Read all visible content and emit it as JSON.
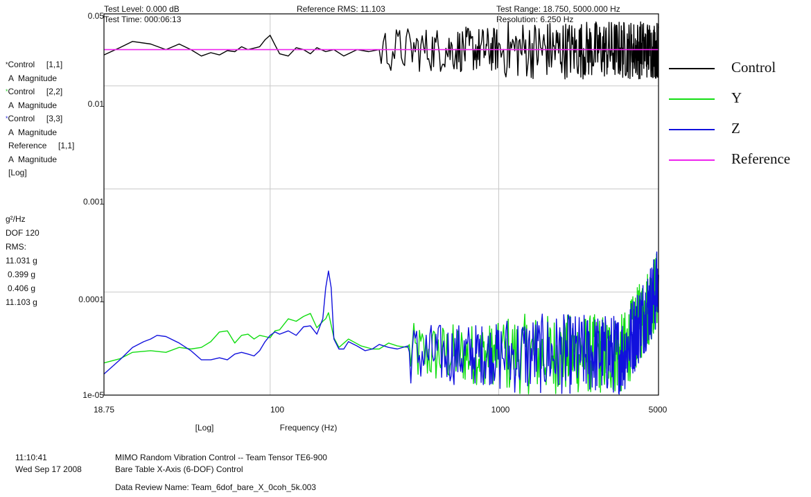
{
  "header": {
    "test_level": "Test Level: 0.000 dB",
    "test_time": "Test Time: 000:06:13",
    "reference_rms": "Reference RMS: 11.103",
    "test_range": "Test Range: 18.750, 5000.000 Hz",
    "resolution": "Resolution: 6.250 Hz"
  },
  "left_panel": {
    "lines": [
      "Control     [1,1]",
      "A  Magnitude",
      "Control     [2,2]",
      "A  Magnitude",
      "Control     [3,3]",
      "A  Magnitude",
      "Reference     [1,1]",
      "A  Magnitude",
      "[Log]"
    ],
    "star_colors": [
      "#000000",
      "#22cc22",
      "#2222dd"
    ],
    "unit": "g²/Hz",
    "dof": "DOF 120",
    "rms_label": "RMS:",
    "rms_values": [
      "11.031 g",
      "0.399 g",
      "0.406 g",
      "11.103 g"
    ]
  },
  "footer": {
    "time": "11:10:41",
    "date": "Wed Sep 17 2008",
    "line1": "MIMO Random Vibration Control  -- Team Tensor TE6-900",
    "line2": "Bare Table X-Axis (6-DOF) Control",
    "line3": "Data Review Name: Team_6dof_bare_X_0coh_5k.003"
  },
  "chart_data": {
    "type": "line",
    "xscale": "log",
    "yscale": "log",
    "xlim": [
      18.75,
      5000
    ],
    "ylim": [
      1e-05,
      0.05
    ],
    "xlabel": "Frequency (Hz)",
    "xscale_label": "[Log]",
    "x_ticks": [
      "18.75",
      "100",
      "1000",
      "5000"
    ],
    "x_tick_values": [
      18.75,
      100,
      1000,
      5000
    ],
    "y_ticks": [
      "0.05",
      "0.01",
      "0.001",
      "0.0001",
      "1e-05"
    ],
    "y_tick_values": [
      0.05,
      0.01,
      0.001,
      0.0001,
      1e-05
    ],
    "grid": true,
    "legend_position": "right",
    "series": [
      {
        "name": "Control",
        "color": "#000000",
        "base": 0.0225,
        "noise": 0.22,
        "x": [
          18.75,
          22,
          25,
          30,
          35,
          40,
          45,
          50,
          55,
          60,
          65,
          70,
          75,
          80,
          90,
          95,
          100,
          105,
          110,
          120,
          130,
          140,
          150,
          160,
          175,
          190,
          210,
          240,
          270,
          300
        ],
        "y": [
          0.02,
          0.0235,
          0.027,
          0.0255,
          0.0225,
          0.0255,
          0.0225,
          0.0195,
          0.021,
          0.02,
          0.022,
          0.0215,
          0.024,
          0.0225,
          0.024,
          0.028,
          0.031,
          0.025,
          0.0205,
          0.0195,
          0.0235,
          0.0225,
          0.0205,
          0.0235,
          0.0215,
          0.0225,
          0.0195,
          0.0225,
          0.0215,
          0.0225
        ]
      },
      {
        "name": "Y",
        "color": "#11dd11",
        "base": 2.5e-05,
        "noise": 0.3,
        "x": [
          18.75,
          22,
          25,
          30,
          35,
          40,
          45,
          50,
          55,
          60,
          65,
          70,
          75,
          80,
          85,
          90,
          95,
          100,
          105,
          110,
          120,
          130,
          140,
          150,
          160,
          170,
          175,
          180,
          190,
          200,
          220,
          250,
          280,
          300,
          330,
          360,
          400
        ],
        "y": [
          2.05e-05,
          2.25e-05,
          2.6e-05,
          2.7e-05,
          2.6e-05,
          2.9e-05,
          2.8e-05,
          2.9e-05,
          3.3e-05,
          4.1e-05,
          4.2e-05,
          3.2e-05,
          3.8e-05,
          3.9e-05,
          3.5e-05,
          3.8e-05,
          3.7e-05,
          3.6e-05,
          4.2e-05,
          4.3e-05,
          5.5e-05,
          5.2e-05,
          5.8e-05,
          6.2e-05,
          4.5e-05,
          5.2e-05,
          5.5e-05,
          6.3e-05,
          3.6e-05,
          2.9e-05,
          3.5e-05,
          3e-05,
          2.8e-05,
          2.8e-05,
          3.2e-05,
          3e-05,
          2.9e-05
        ]
      },
      {
        "name": "Z",
        "color": "#1111dd",
        "base": 2.5e-05,
        "noise": 0.3,
        "x": [
          18.75,
          22,
          25,
          28,
          30,
          32,
          35,
          40,
          45,
          50,
          55,
          60,
          65,
          70,
          75,
          80,
          85,
          90,
          95,
          100,
          105,
          110,
          120,
          130,
          140,
          150,
          160,
          170,
          175,
          180,
          185,
          190,
          200,
          210,
          220,
          240,
          260,
          280,
          300,
          330,
          360,
          400
        ],
        "y": [
          1.6e-05,
          2.2e-05,
          2.9e-05,
          3.3e-05,
          3.5e-05,
          3.8e-05,
          3.7e-05,
          3.2e-05,
          2.7e-05,
          2.2e-05,
          2.2e-05,
          2.3e-05,
          2.2e-05,
          2.5e-05,
          2.6e-05,
          2.5e-05,
          2.4e-05,
          2.7e-05,
          3.3e-05,
          3.8e-05,
          4.1e-05,
          3.9e-05,
          4.2e-05,
          3.8e-05,
          4.6e-05,
          4.7e-05,
          3.9e-05,
          5.5e-05,
          0.00011,
          0.00016,
          0.00011,
          3.5e-05,
          2.8e-05,
          2.8e-05,
          3.3e-05,
          3e-05,
          2.7e-05,
          2.8e-05,
          3.1e-05,
          2.9e-05,
          2.8e-05,
          3e-05
        ]
      },
      {
        "name": "Reference",
        "color": "#ee22ee",
        "x": [
          18.75,
          5000
        ],
        "y": [
          0.0225,
          0.0225
        ]
      }
    ]
  }
}
